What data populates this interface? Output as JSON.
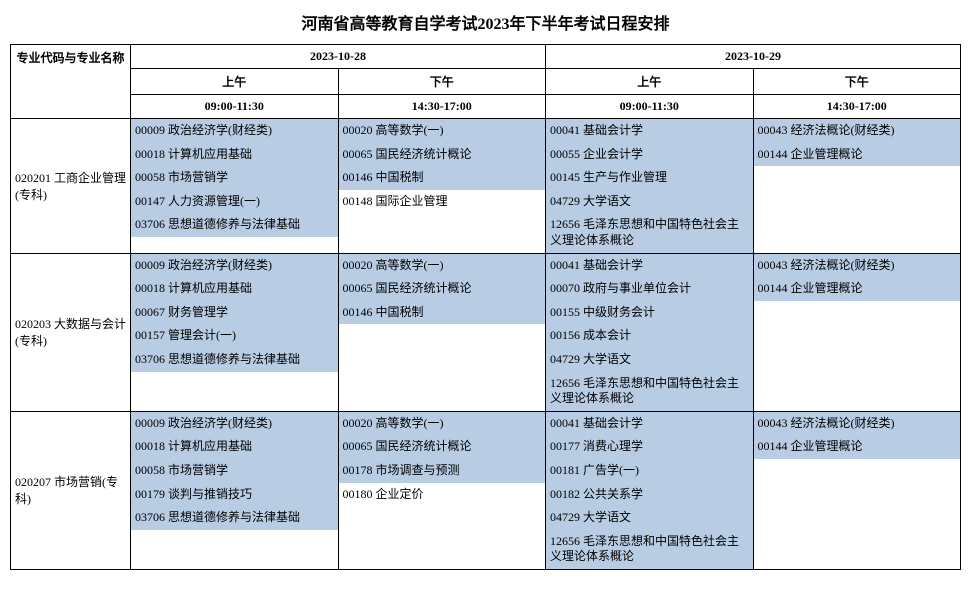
{
  "title": "河南省高等教育自学考试2023年下半年考试日程安排",
  "header": {
    "major_col": "专业代码与专业名称",
    "day1": "2023-10-28",
    "day2": "2023-10-29",
    "am": "上午",
    "pm": "下午",
    "am_time": "09:00-11:30",
    "pm_time": "14:30-17:00"
  },
  "highlight_color": "#b8cce4",
  "rows": [
    {
      "major": "020201 工商企业管理(专科)",
      "slots": [
        [
          {
            "t": "00009 政治经济学(财经类)",
            "hl": true
          },
          {
            "t": "00018 计算机应用基础",
            "hl": true
          },
          {
            "t": "00058 市场营销学",
            "hl": true
          },
          {
            "t": "00147 人力资源管理(一)",
            "hl": true
          },
          {
            "t": "03706 思想道德修养与法律基础",
            "hl": true
          }
        ],
        [
          {
            "t": "00020 高等数学(一)",
            "hl": true
          },
          {
            "t": "00065 国民经济统计概论",
            "hl": true
          },
          {
            "t": "00146 中国税制",
            "hl": true
          },
          {
            "t": "00148 国际企业管理",
            "hl": false
          }
        ],
        [
          {
            "t": "00041 基础会计学",
            "hl": true
          },
          {
            "t": "00055 企业会计学",
            "hl": true
          },
          {
            "t": "00145 生产与作业管理",
            "hl": true
          },
          {
            "t": "04729 大学语文",
            "hl": true
          },
          {
            "t": "12656 毛泽东思想和中国特色社会主义理论体系概论",
            "hl": true
          }
        ],
        [
          {
            "t": "00043 经济法概论(财经类)",
            "hl": true
          },
          {
            "t": "00144 企业管理概论",
            "hl": true
          }
        ]
      ]
    },
    {
      "major": "020203 大数据与会计(专科)",
      "slots": [
        [
          {
            "t": "00009 政治经济学(财经类)",
            "hl": true
          },
          {
            "t": "00018 计算机应用基础",
            "hl": true
          },
          {
            "t": "00067 财务管理学",
            "hl": true
          },
          {
            "t": "00157 管理会计(一)",
            "hl": true
          },
          {
            "t": "03706 思想道德修养与法律基础",
            "hl": true
          }
        ],
        [
          {
            "t": "00020 高等数学(一)",
            "hl": true
          },
          {
            "t": "00065 国民经济统计概论",
            "hl": true
          },
          {
            "t": "00146 中国税制",
            "hl": true
          }
        ],
        [
          {
            "t": "00041 基础会计学",
            "hl": true
          },
          {
            "t": "00070 政府与事业单位会计",
            "hl": true
          },
          {
            "t": "00155 中级财务会计",
            "hl": true
          },
          {
            "t": "00156 成本会计",
            "hl": true
          },
          {
            "t": "04729 大学语文",
            "hl": true
          },
          {
            "t": "12656 毛泽东思想和中国特色社会主义理论体系概论",
            "hl": true
          }
        ],
        [
          {
            "t": "00043 经济法概论(财经类)",
            "hl": true
          },
          {
            "t": "00144 企业管理概论",
            "hl": true
          }
        ]
      ]
    },
    {
      "major": "020207 市场营销(专科)",
      "slots": [
        [
          {
            "t": "00009 政治经济学(财经类)",
            "hl": true
          },
          {
            "t": "00018 计算机应用基础",
            "hl": true
          },
          {
            "t": "00058 市场营销学",
            "hl": true
          },
          {
            "t": "00179 谈判与推销技巧",
            "hl": true
          },
          {
            "t": "03706 思想道德修养与法律基础",
            "hl": true
          }
        ],
        [
          {
            "t": "00020 高等数学(一)",
            "hl": true
          },
          {
            "t": "00065 国民经济统计概论",
            "hl": true
          },
          {
            "t": "00178 市场调查与预测",
            "hl": true
          },
          {
            "t": "00180 企业定价",
            "hl": false
          }
        ],
        [
          {
            "t": "00041 基础会计学",
            "hl": true
          },
          {
            "t": "00177 消费心理学",
            "hl": true
          },
          {
            "t": "00181 广告学(一)",
            "hl": true
          },
          {
            "t": "00182 公共关系学",
            "hl": true
          },
          {
            "t": "04729 大学语文",
            "hl": true
          },
          {
            "t": "12656 毛泽东思想和中国特色社会主义理论体系概论",
            "hl": true
          }
        ],
        [
          {
            "t": "00043 经济法概论(财经类)",
            "hl": true
          },
          {
            "t": "00144 企业管理概论",
            "hl": true
          }
        ]
      ]
    }
  ]
}
